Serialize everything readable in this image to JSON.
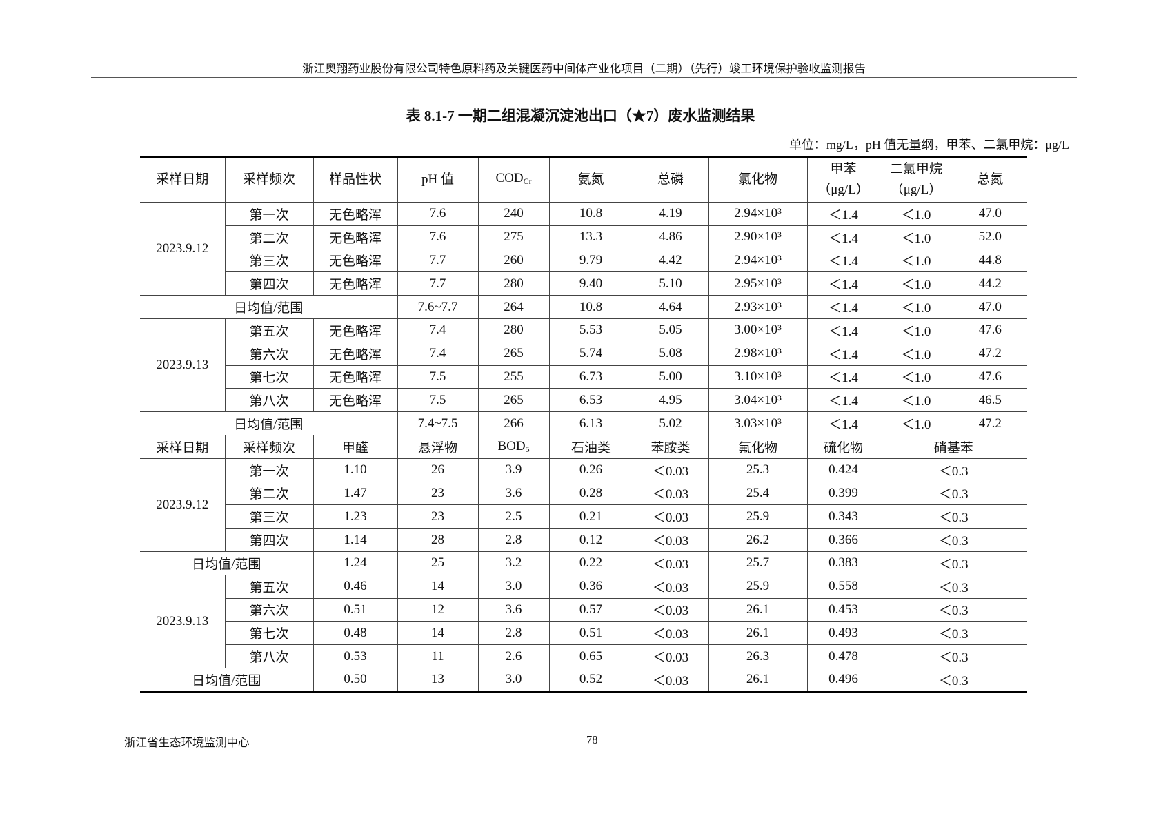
{
  "running_header": "浙江奥翔药业股份有限公司特色原料药及关键医药中间体产业化项目（二期）（先行）竣工环境保护验收监测报告",
  "title": "表 8.1-7  一期二组混凝沉淀池出口（★7）废水监测结果",
  "unit": "单位：mg/L，pH 值无量纲，甲苯、二氯甲烷：μg/L",
  "section1": {
    "headers": [
      {
        "text": "采样日期"
      },
      {
        "text": "采样频次"
      },
      {
        "text": "样品性状"
      },
      {
        "text": "pH 值"
      },
      {
        "text": "COD",
        "sub": "Cr"
      },
      {
        "text": "氨氮"
      },
      {
        "text": "总磷"
      },
      {
        "text": "氯化物"
      },
      {
        "text": "甲苯",
        "line2": "（μg/L）"
      },
      {
        "text": "二氯甲烷",
        "line2": "（μg/L）"
      },
      {
        "text": "总氮"
      }
    ],
    "groups": [
      {
        "date": "2023.9.12",
        "rows": [
          [
            "第一次",
            "无色略浑",
            "7.6",
            "240",
            "10.8",
            "4.19",
            "2.94×10³",
            "＜1.4",
            "＜1.0",
            "47.0"
          ],
          [
            "第二次",
            "无色略浑",
            "7.6",
            "275",
            "13.3",
            "4.86",
            "2.90×10³",
            "＜1.4",
            "＜1.0",
            "52.0"
          ],
          [
            "第三次",
            "无色略浑",
            "7.7",
            "260",
            "9.79",
            "4.42",
            "2.94×10³",
            "＜1.4",
            "＜1.0",
            "44.8"
          ],
          [
            "第四次",
            "无色略浑",
            "7.7",
            "280",
            "9.40",
            "5.10",
            "2.95×10³",
            "＜1.4",
            "＜1.0",
            "44.2"
          ]
        ],
        "avg": [
          "日均值/范围",
          "7.6~7.7",
          "264",
          "10.8",
          "4.64",
          "2.93×10³",
          "＜1.4",
          "＜1.0",
          "47.0"
        ]
      },
      {
        "date": "2023.9.13",
        "rows": [
          [
            "第五次",
            "无色略浑",
            "7.4",
            "280",
            "5.53",
            "5.05",
            "3.00×10³",
            "＜1.4",
            "＜1.0",
            "47.6"
          ],
          [
            "第六次",
            "无色略浑",
            "7.4",
            "265",
            "5.74",
            "5.08",
            "2.98×10³",
            "＜1.4",
            "＜1.0",
            "47.2"
          ],
          [
            "第七次",
            "无色略浑",
            "7.5",
            "255",
            "6.73",
            "5.00",
            "3.10×10³",
            "＜1.4",
            "＜1.0",
            "47.6"
          ],
          [
            "第八次",
            "无色略浑",
            "7.5",
            "265",
            "6.53",
            "4.95",
            "3.04×10³",
            "＜1.4",
            "＜1.0",
            "46.5"
          ]
        ],
        "avg": [
          "日均值/范围",
          "7.4~7.5",
          "266",
          "6.13",
          "5.02",
          "3.03×10³",
          "＜1.4",
          "＜1.0",
          "47.2"
        ]
      }
    ]
  },
  "section2": {
    "headers": [
      {
        "text": "采样日期"
      },
      {
        "text": "采样频次"
      },
      {
        "text": "甲醛"
      },
      {
        "text": "悬浮物"
      },
      {
        "text": "BOD",
        "sub": "5"
      },
      {
        "text": "石油类"
      },
      {
        "text": "苯胺类"
      },
      {
        "text": "氟化物"
      },
      {
        "text": "硫化物"
      },
      {
        "text": "硝基苯"
      }
    ],
    "groups": [
      {
        "date": "2023.9.12",
        "rows": [
          [
            "第一次",
            "1.10",
            "26",
            "3.9",
            "0.26",
            "＜0.03",
            "25.3",
            "0.424",
            "＜0.3"
          ],
          [
            "第二次",
            "1.47",
            "23",
            "3.6",
            "0.28",
            "＜0.03",
            "25.4",
            "0.399",
            "＜0.3"
          ],
          [
            "第三次",
            "1.23",
            "23",
            "2.5",
            "0.21",
            "＜0.03",
            "25.9",
            "0.343",
            "＜0.3"
          ],
          [
            "第四次",
            "1.14",
            "28",
            "2.8",
            "0.12",
            "＜0.03",
            "26.2",
            "0.366",
            "＜0.3"
          ]
        ],
        "avg": [
          "日均值/范围",
          "1.24",
          "25",
          "3.2",
          "0.22",
          "＜0.03",
          "25.7",
          "0.383",
          "＜0.3"
        ]
      },
      {
        "date": "2023.9.13",
        "rows": [
          [
            "第五次",
            "0.46",
            "14",
            "3.0",
            "0.36",
            "＜0.03",
            "25.9",
            "0.558",
            "＜0.3"
          ],
          [
            "第六次",
            "0.51",
            "12",
            "3.6",
            "0.57",
            "＜0.03",
            "26.1",
            "0.453",
            "＜0.3"
          ],
          [
            "第七次",
            "0.48",
            "14",
            "2.8",
            "0.51",
            "＜0.03",
            "26.1",
            "0.493",
            "＜0.3"
          ],
          [
            "第八次",
            "0.53",
            "11",
            "2.6",
            "0.65",
            "＜0.03",
            "26.3",
            "0.478",
            "＜0.3"
          ]
        ],
        "avg": [
          "日均值/范围",
          "0.50",
          "13",
          "3.0",
          "0.52",
          "＜0.03",
          "26.1",
          "0.496",
          "＜0.3"
        ]
      }
    ]
  },
  "footer": {
    "org": "浙江省生态环境监测中心",
    "page": "78"
  }
}
